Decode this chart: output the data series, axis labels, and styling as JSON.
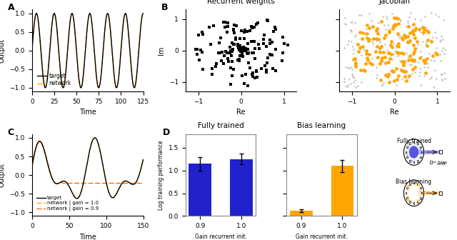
{
  "panel_A": {
    "xlabel": "Time",
    "ylabel": "Output",
    "xlim": [
      0,
      125
    ],
    "ylim": [
      -1.1,
      1.1
    ],
    "xticks": [
      0,
      25,
      50,
      75,
      100,
      125
    ],
    "yticks": [
      -1.0,
      -0.5,
      0.0,
      0.5,
      1.0
    ],
    "freq": 0.05,
    "target_color": "#000000",
    "network_color": "#FFA500",
    "legend_labels": [
      "target",
      "network"
    ]
  },
  "panel_B_recurrent": {
    "title": "Recurrent weights",
    "xlabel": "Re",
    "ylabel": "Im",
    "xlim": [
      -1.3,
      1.3
    ],
    "ylim": [
      -1.3,
      1.3
    ],
    "xticks": [
      -1,
      0,
      1
    ],
    "yticks": [
      -1,
      0,
      1
    ],
    "color": "#000000",
    "n_points": 150
  },
  "panel_B_jacobian": {
    "title": "Jacobian",
    "xlabel": "Re",
    "xlim": [
      -1.3,
      1.3
    ],
    "ylim": [
      -1.3,
      1.3
    ],
    "xticks": [
      -1,
      0,
      1
    ],
    "yticks": [
      -1,
      0,
      1
    ],
    "color": "#FFA500",
    "n_points": 150
  },
  "panel_C": {
    "xlabel": "Time",
    "ylabel": "Output",
    "xlim": [
      0,
      150
    ],
    "ylim": [
      -1.1,
      1.1
    ],
    "xticks": [
      0,
      50,
      100,
      150
    ],
    "yticks": [
      -1.0,
      -0.5,
      0.0,
      0.5,
      1.0
    ],
    "target_color": "#000000",
    "network10_color": "#FFA500",
    "network09_color": "#FF6600",
    "legend_labels": [
      "target",
      "network | gain = 1.0",
      "network | gain = 0.9"
    ]
  },
  "panel_D": {
    "title_left": "Fully trained",
    "title_right": "Bias learning",
    "xlabel": "Gain recurrent init.",
    "ylabel": "Log training performance",
    "categories": [
      "0.9",
      "1.0"
    ],
    "fully_trained_values": [
      1.15,
      1.25
    ],
    "fully_trained_errors": [
      0.15,
      0.12
    ],
    "bias_learning_values": [
      0.12,
      1.1
    ],
    "bias_learning_errors": [
      0.03,
      0.13
    ],
    "bar_color_blue": "#2222CC",
    "bar_color_orange": "#FFA500",
    "ylim": [
      0,
      1.8
    ],
    "yticks": [
      0.0,
      0.5,
      1.0,
      1.5
    ]
  },
  "label_fontsize": 7,
  "panel_label_fontsize": 9,
  "tick_fontsize": 6.5,
  "title_fontsize": 7.5
}
